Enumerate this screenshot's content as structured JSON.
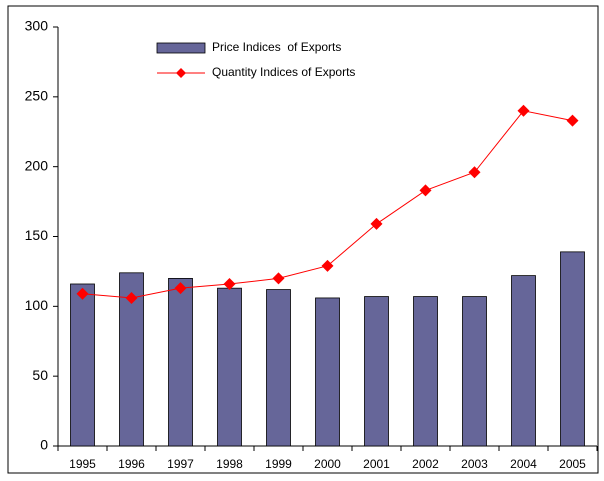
{
  "chart_data": {
    "type": "bar_line",
    "categories": [
      "1995",
      "1996",
      "1997",
      "1998",
      "1999",
      "2000",
      "2001",
      "2002",
      "2003",
      "2004",
      "2005"
    ],
    "series": [
      {
        "name": "Price Indices  of Exports",
        "type": "bar",
        "color": "#666699",
        "values": [
          116,
          124,
          120,
          113,
          112,
          106,
          107,
          107,
          107,
          122,
          139
        ]
      },
      {
        "name": "Quantity Indices of Exports",
        "type": "line",
        "color": "#ff0000",
        "values": [
          109,
          106,
          113,
          116,
          120,
          129,
          159,
          183,
          196,
          240,
          233
        ]
      }
    ],
    "ylim": [
      0,
      300
    ],
    "yticks": [
      0,
      50,
      100,
      150,
      200,
      250,
      300
    ],
    "grid": false,
    "legend": "top"
  }
}
